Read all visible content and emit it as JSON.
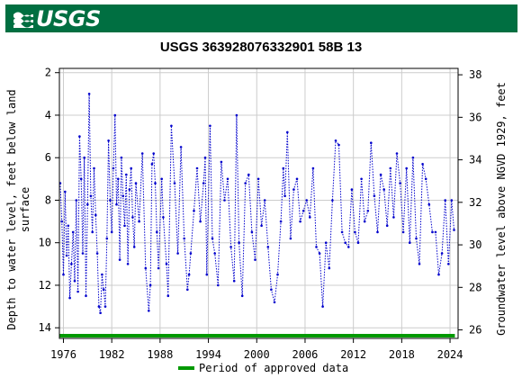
{
  "header": {
    "logo_text": "USGS",
    "logo_icon": "usgs-wave-logo",
    "banner_color": "#006f41"
  },
  "chart_data": {
    "type": "scatter",
    "title": "USGS 363928076332901 58B 13",
    "ylabel_left": "Depth to water level, feet below land surface",
    "ylabel_left_lines": [
      "Depth to water level, feet below land",
      "surface"
    ],
    "ylabel_right": "Groundwater level above NGVD 1929, feet",
    "x_ticks": [
      "1976",
      "1982",
      "1988",
      "1994",
      "2000",
      "2006",
      "2012",
      "2018",
      "2024"
    ],
    "x_tick_years": [
      1976,
      1982,
      1988,
      1994,
      2000,
      2006,
      2012,
      2018,
      2024
    ],
    "xlim": [
      1975.5,
      2025
    ],
    "y_left_ticks": [
      "2",
      "4",
      "6",
      "8",
      "10",
      "12",
      "14"
    ],
    "y_left_values": [
      2,
      4,
      6,
      8,
      10,
      12,
      14
    ],
    "ylim_left": [
      1.8,
      14.5
    ],
    "y_right_ticks": [
      "26",
      "28",
      "30",
      "32",
      "34",
      "36",
      "38"
    ],
    "y_right_values": [
      26,
      28,
      30,
      32,
      34,
      36,
      38
    ],
    "grid": true,
    "series_color": "#0000cc",
    "approved_color": "#009900",
    "legend": {
      "label": "Period of approved data",
      "placement": "bottom"
    },
    "series": [
      {
        "name": "",
        "points": [
          [
            1975.6,
            7.2
          ],
          [
            1975.8,
            9.0
          ],
          [
            1976.0,
            11.5
          ],
          [
            1976.2,
            7.6
          ],
          [
            1976.4,
            10.6
          ],
          [
            1976.6,
            9.2
          ],
          [
            1976.8,
            12.6
          ],
          [
            1977.0,
            11.0
          ],
          [
            1977.2,
            9.5
          ],
          [
            1977.4,
            11.8
          ],
          [
            1977.6,
            8.0
          ],
          [
            1977.8,
            12.3
          ],
          [
            1978.0,
            5.0
          ],
          [
            1978.2,
            7.0
          ],
          [
            1978.4,
            10.5
          ],
          [
            1978.6,
            6.0
          ],
          [
            1978.8,
            12.5
          ],
          [
            1979.0,
            8.2
          ],
          [
            1979.2,
            3.0
          ],
          [
            1979.4,
            7.8
          ],
          [
            1979.6,
            9.5
          ],
          [
            1979.8,
            6.5
          ],
          [
            1980.0,
            8.7
          ],
          [
            1980.2,
            10.5
          ],
          [
            1980.4,
            13.0
          ],
          [
            1980.6,
            13.3
          ],
          [
            1980.8,
            11.5
          ],
          [
            1981.0,
            12.2
          ],
          [
            1981.2,
            13.0
          ],
          [
            1981.4,
            9.8
          ],
          [
            1981.6,
            5.2
          ],
          [
            1981.8,
            8.0
          ],
          [
            1982.0,
            9.5
          ],
          [
            1982.2,
            6.5
          ],
          [
            1982.4,
            4.0
          ],
          [
            1982.6,
            8.2
          ],
          [
            1982.8,
            7.0
          ],
          [
            1983.0,
            10.8
          ],
          [
            1983.2,
            6.0
          ],
          [
            1983.4,
            7.8
          ],
          [
            1983.6,
            9.2
          ],
          [
            1983.8,
            6.8
          ],
          [
            1984.0,
            11.0
          ],
          [
            1984.2,
            7.5
          ],
          [
            1984.4,
            6.5
          ],
          [
            1984.6,
            8.8
          ],
          [
            1984.8,
            10.2
          ],
          [
            1985.0,
            7.2
          ],
          [
            1985.4,
            9.0
          ],
          [
            1985.8,
            5.8
          ],
          [
            1986.2,
            11.2
          ],
          [
            1986.6,
            13.2
          ],
          [
            1986.8,
            12.0
          ],
          [
            1987.0,
            6.3
          ],
          [
            1987.2,
            5.8
          ],
          [
            1987.4,
            7.2
          ],
          [
            1987.6,
            9.5
          ],
          [
            1987.8,
            11.2
          ],
          [
            1988.2,
            7.0
          ],
          [
            1988.4,
            8.8
          ],
          [
            1988.8,
            11.0
          ],
          [
            1989.0,
            12.5
          ],
          [
            1989.4,
            4.5
          ],
          [
            1989.8,
            7.2
          ],
          [
            1990.2,
            10.5
          ],
          [
            1990.6,
            5.5
          ],
          [
            1991.0,
            9.8
          ],
          [
            1991.4,
            12.2
          ],
          [
            1991.6,
            11.5
          ],
          [
            1991.8,
            10.5
          ],
          [
            1992.2,
            8.5
          ],
          [
            1992.6,
            6.5
          ],
          [
            1993.0,
            9.0
          ],
          [
            1993.4,
            7.2
          ],
          [
            1993.6,
            6.0
          ],
          [
            1993.8,
            11.5
          ],
          [
            1994.2,
            4.5
          ],
          [
            1994.5,
            9.8
          ],
          [
            1994.8,
            10.5
          ],
          [
            1995.2,
            12.0
          ],
          [
            1995.6,
            6.2
          ],
          [
            1996.0,
            8.0
          ],
          [
            1996.4,
            7.0
          ],
          [
            1996.8,
            10.2
          ],
          [
            1997.2,
            11.8
          ],
          [
            1997.5,
            4.0
          ],
          [
            1997.8,
            10.0
          ],
          [
            1998.2,
            12.5
          ],
          [
            1998.6,
            7.2
          ],
          [
            1999.0,
            6.8
          ],
          [
            1999.4,
            9.5
          ],
          [
            1999.8,
            10.8
          ],
          [
            2000.2,
            7.0
          ],
          [
            2000.6,
            9.2
          ],
          [
            2001.0,
            8.0
          ],
          [
            2001.4,
            10.2
          ],
          [
            2001.8,
            12.2
          ],
          [
            2002.2,
            12.8
          ],
          [
            2002.6,
            11.5
          ],
          [
            2003.0,
            9.0
          ],
          [
            2003.3,
            6.5
          ],
          [
            2003.5,
            7.8
          ],
          [
            2003.8,
            4.8
          ],
          [
            2004.2,
            9.8
          ],
          [
            2004.6,
            7.5
          ],
          [
            2005.0,
            7.0
          ],
          [
            2005.4,
            9.0
          ],
          [
            2005.8,
            8.5
          ],
          [
            2006.2,
            8.0
          ],
          [
            2006.6,
            8.8
          ],
          [
            2007.0,
            6.5
          ],
          [
            2007.4,
            10.2
          ],
          [
            2007.8,
            10.5
          ],
          [
            2008.2,
            13.0
          ],
          [
            2008.6,
            10.0
          ],
          [
            2009.0,
            11.2
          ],
          [
            2009.4,
            8.0
          ],
          [
            2009.8,
            5.2
          ],
          [
            2010.2,
            5.4
          ],
          [
            2010.6,
            9.5
          ],
          [
            2011.0,
            10.0
          ],
          [
            2011.4,
            10.2
          ],
          [
            2011.8,
            7.5
          ],
          [
            2012.2,
            9.5
          ],
          [
            2012.6,
            10.0
          ],
          [
            2013.0,
            7.0
          ],
          [
            2013.4,
            9.0
          ],
          [
            2013.8,
            8.5
          ],
          [
            2014.2,
            5.3
          ],
          [
            2014.6,
            7.8
          ],
          [
            2015.0,
            9.5
          ],
          [
            2015.4,
            6.8
          ],
          [
            2015.8,
            7.5
          ],
          [
            2016.2,
            9.2
          ],
          [
            2016.6,
            6.5
          ],
          [
            2017.0,
            8.8
          ],
          [
            2017.4,
            5.8
          ],
          [
            2017.8,
            7.2
          ],
          [
            2018.2,
            9.5
          ],
          [
            2018.6,
            6.5
          ],
          [
            2019.0,
            10.0
          ],
          [
            2019.4,
            6.0
          ],
          [
            2019.8,
            9.8
          ],
          [
            2020.2,
            11.0
          ],
          [
            2020.6,
            6.3
          ],
          [
            2021.0,
            7.0
          ],
          [
            2021.4,
            8.2
          ],
          [
            2021.8,
            9.5
          ],
          [
            2022.2,
            9.5
          ],
          [
            2022.6,
            11.5
          ],
          [
            2023.0,
            10.5
          ],
          [
            2023.4,
            8.0
          ],
          [
            2023.8,
            11.0
          ],
          [
            2024.2,
            8.0
          ],
          [
            2024.5,
            9.4
          ]
        ]
      }
    ],
    "approved_range": [
      1975.5,
      2024.6
    ]
  }
}
